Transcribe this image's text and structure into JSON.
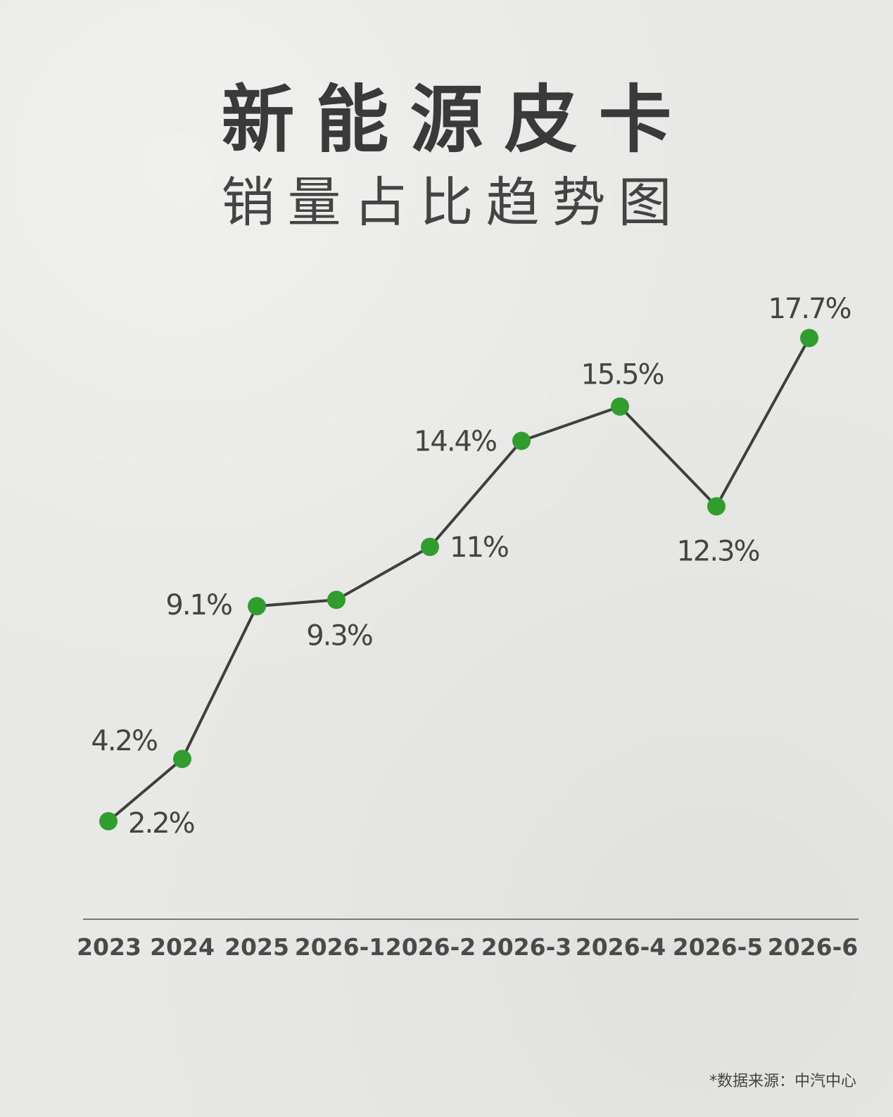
{
  "header": {
    "title": "新能源皮卡",
    "subtitle": "销量占比趋势图"
  },
  "footer": {
    "source": "*数据来源：中汽中心"
  },
  "colors": {
    "background": "#e8e8e6",
    "line": "#3f3f3f",
    "marker": "#2f9e2f",
    "axis": "#555555",
    "text": "#3b3b3b"
  },
  "chart_data": {
    "type": "line",
    "title": "新能源皮卡",
    "subtitle": "销量占比趋势图",
    "xlabel": "",
    "ylabel": "",
    "grid": false,
    "legend": "none",
    "categories": [
      "2023",
      "2024",
      "2025",
      "2026-1",
      "2026-2",
      "2026-3",
      "2026-4",
      "2026-5",
      "2026-6"
    ],
    "values": [
      2.2,
      4.2,
      9.1,
      9.3,
      11,
      14.4,
      15.5,
      12.3,
      17.7
    ],
    "value_labels": [
      "2.2%",
      "4.2%",
      "9.1%",
      "9.3%",
      "11%",
      "14.4%",
      "15.5%",
      "12.3%",
      "17.7%"
    ],
    "unit": "%"
  }
}
